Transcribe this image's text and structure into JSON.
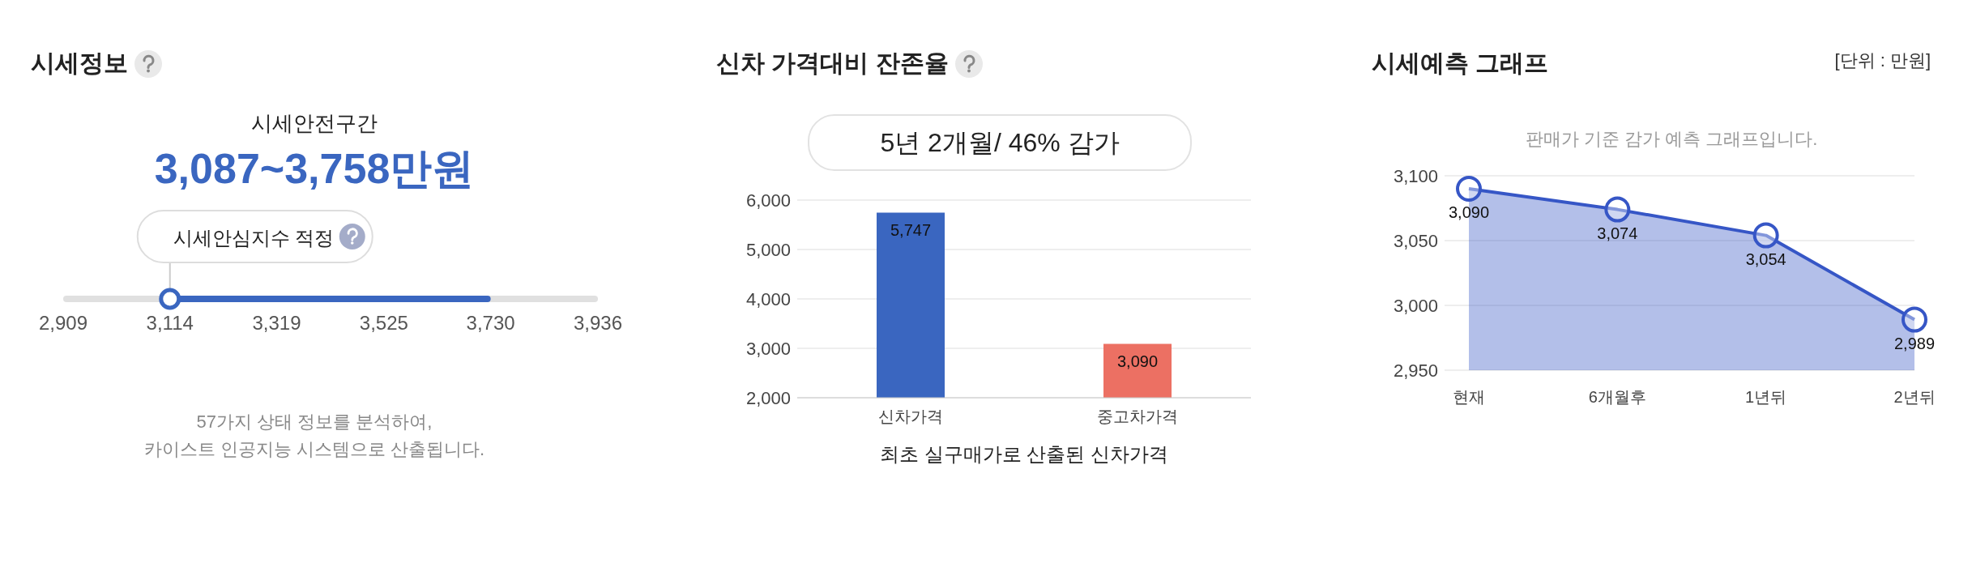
{
  "chart_data": [
    {
      "type": "bar",
      "title": "시세정보",
      "subtitle": "시세안전구간",
      "orientation": "horizontal",
      "categories": [
        null
      ],
      "base": [
        3114
      ],
      "values": [
        616
      ],
      "color": "#3a66c0",
      "xlim": [
        2909,
        3936
      ],
      "xticks": [
        {
          "value": 2909,
          "label": "2,909"
        },
        {
          "value": 3114,
          "label": "3,114"
        },
        {
          "value": 3319,
          "label": "3,319"
        },
        {
          "value": 3525,
          "label": "3,525"
        },
        {
          "value": 3730,
          "label": "3,730"
        },
        {
          "value": 3936,
          "label": "3,936"
        }
      ],
      "ref_lines": [
        {
          "axis": "x",
          "value": 3114,
          "label": "시세안심지수 적정"
        }
      ],
      "annotations": [
        "3,087~3,758만원",
        "57가지 상태 정보를 분석하여,\n카이스트 인공지능 시스템으로 산출됩니다."
      ]
    },
    {
      "type": "bar",
      "title": "신차 가격대비 잔존율",
      "subtitle": "5년 2개월/ 46% 감가",
      "xlabel": "최초 실구매가로 산출된 신차가격",
      "categories": [
        "신차가격",
        "중고차가격"
      ],
      "values": [
        5747,
        3090
      ],
      "value_labels": [
        "5,747",
        "3,090"
      ],
      "colors": [
        "#3a66c0",
        "#ec7063"
      ],
      "ylim": [
        2000,
        6000
      ],
      "yticks": [
        {
          "value": 2000,
          "label": "2,000"
        },
        {
          "value": 3000,
          "label": "3,000"
        },
        {
          "value": 4000,
          "label": "4,000"
        },
        {
          "value": 5000,
          "label": "5,000"
        },
        {
          "value": 6000,
          "label": "6,000"
        }
      ],
      "grid": "y"
    },
    {
      "type": "area",
      "title": "시세예측 그래프",
      "subtitle": "판매가 기준 감가 예측 그래프입니다.",
      "annotations": [
        "[단위 : 만원]"
      ],
      "categories": [
        "현재",
        "6개월후",
        "1년뒤",
        "2년뒤"
      ],
      "series": [
        {
          "color": "#3656c6",
          "values": [
            3090,
            3074,
            3054,
            2989
          ],
          "value_labels": [
            "3,090",
            "3,074",
            "3,054",
            "2,989"
          ]
        }
      ],
      "ylim": [
        2950,
        3100
      ],
      "yticks": [
        {
          "value": 2950,
          "label": "2,950"
        },
        {
          "value": 3000,
          "label": "3,000"
        },
        {
          "value": 3050,
          "label": "3,050"
        },
        {
          "value": 3100,
          "label": "3,100"
        }
      ],
      "grid": "y",
      "marker": "circle"
    }
  ]
}
